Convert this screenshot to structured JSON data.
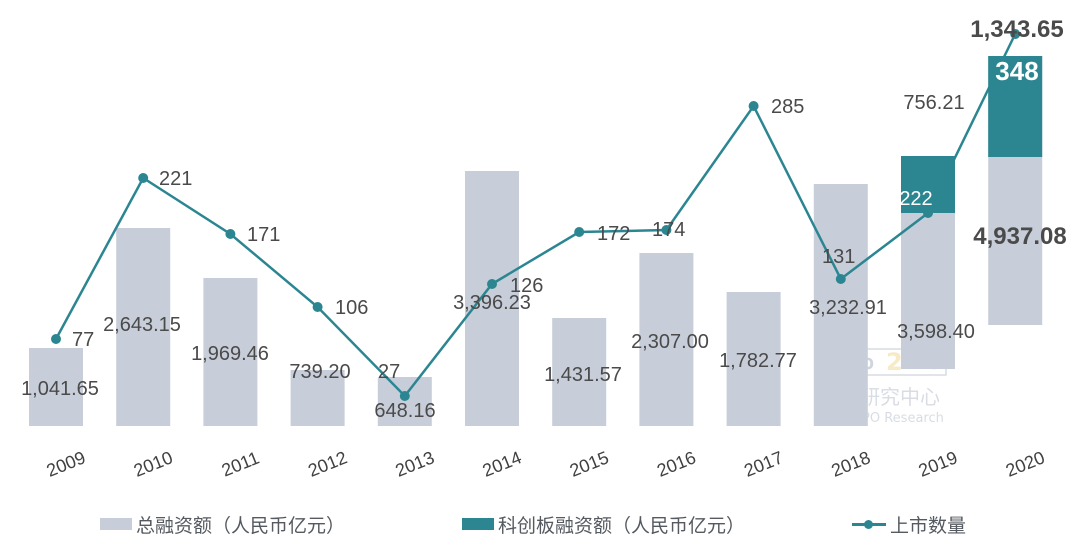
{
  "chart_data": {
    "type": "bar",
    "subtype": "stacked bar + line combo",
    "title": "",
    "xlabel": "",
    "ylabel": "",
    "categories": [
      "2009",
      "2010",
      "2011",
      "2012",
      "2013",
      "2014",
      "2015",
      "2016",
      "2017",
      "2018",
      "2019",
      "2020"
    ],
    "series": [
      {
        "name": "总融资额（人民币亿元）",
        "type": "bar",
        "color": "#c8ced9",
        "values": [
          1041.65,
          2643.15,
          1969.46,
          739.2,
          648.16,
          3396.23,
          1431.57,
          2307.0,
          1782.77,
          3232.91,
          3598.4,
          4937.08
        ],
        "labels": [
          "1,041.65",
          "2,643.15",
          "1,969.46",
          "739.20",
          "648.16",
          "3,396.23",
          "1,431.57",
          "2,307.00",
          "1,782.77",
          "3,232.91",
          "3,598.40",
          "4,937.08"
        ]
      },
      {
        "name": "科创板融资额（人民币亿元）",
        "type": "bar",
        "stacked_on": "总融资额（人民币亿元）",
        "color": "#2b8691",
        "values": [
          null,
          null,
          null,
          null,
          null,
          null,
          null,
          null,
          null,
          null,
          756.21,
          1343.65
        ],
        "labels": [
          "",
          "",
          "",
          "",
          "",
          "",
          "",
          "",
          "",
          "",
          "756.21",
          "1,343.65"
        ]
      },
      {
        "name": "上市数量",
        "type": "line",
        "color": "#2b8691",
        "values": [
          77,
          221,
          171,
          106,
          27,
          126,
          172,
          174,
          285,
          131,
          222,
          348
        ],
        "labels": [
          "77",
          "221",
          "171",
          "106",
          "27",
          "126",
          "172",
          "174",
          "285",
          "131",
          "222",
          "348"
        ]
      }
    ],
    "grid": false,
    "legend_position": "bottom",
    "axes_visible": false,
    "watermark": [
      "Zero IPO",
      "清科研究中心",
      "Zero2IPO Research"
    ]
  },
  "legend": {
    "items": [
      {
        "label": "总融资额（人民币亿元）",
        "color": "#c8ced9",
        "kind": "bar"
      },
      {
        "label": "科创板融资额（人民币亿元）",
        "color": "#2b8691",
        "kind": "bar"
      },
      {
        "label": "上市数量",
        "color": "#2b8691",
        "kind": "line"
      }
    ]
  }
}
